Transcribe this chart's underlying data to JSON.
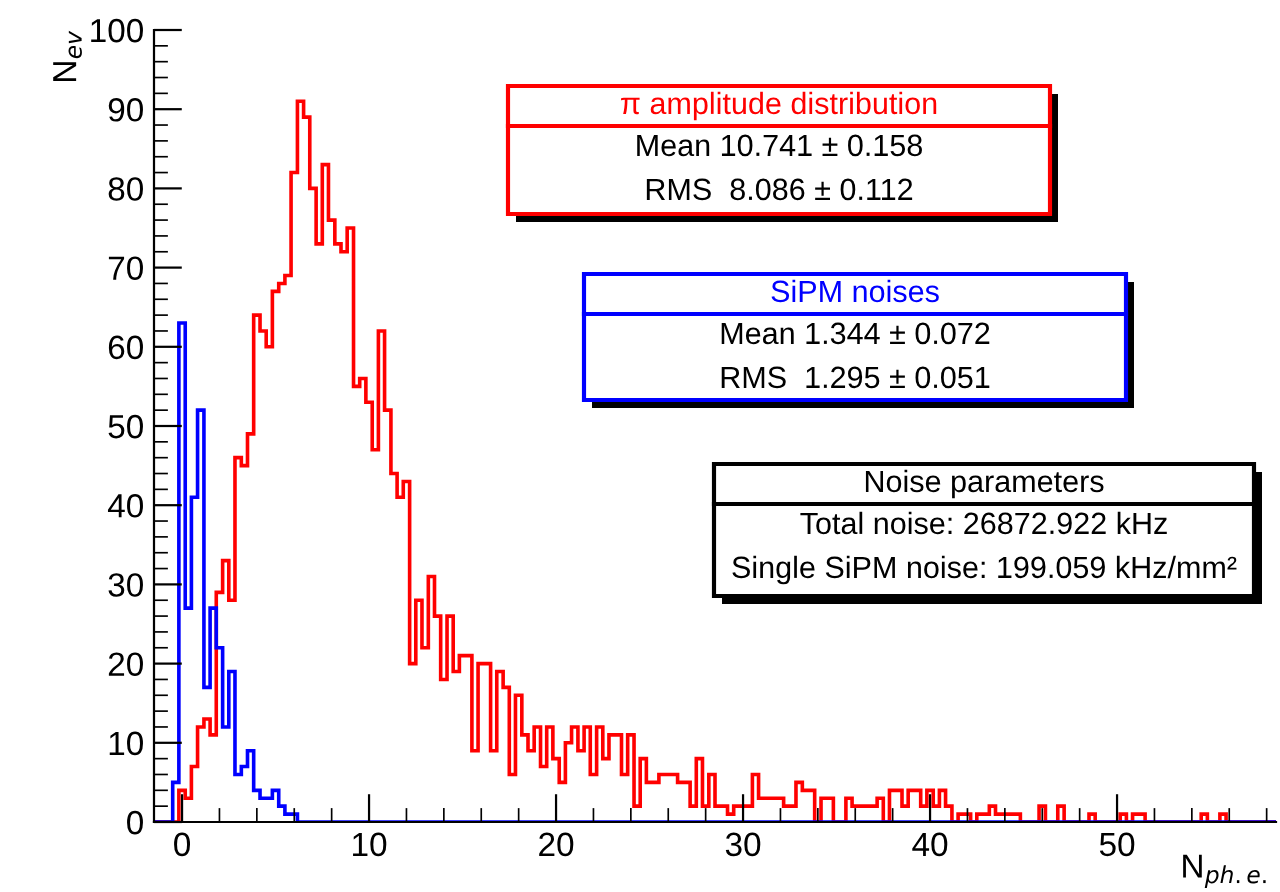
{
  "chart_data": {
    "type": "histogram",
    "xlabel": "N$_{ph.e.}$",
    "ylabel": "N$_{ev}$",
    "bins": [
      -1.5,
      -1.17,
      -0.83,
      -0.5,
      -0.17,
      0.17,
      0.5,
      0.83,
      1.17,
      1.5,
      1.83,
      2.17,
      2.5,
      2.83,
      3.17,
      3.5,
      3.83,
      4.17,
      4.5,
      4.83,
      5.17,
      5.5,
      5.83,
      6.17,
      6.5,
      6.83,
      7.17,
      7.5,
      7.83,
      8.17,
      8.5,
      8.83,
      9.17,
      9.5,
      9.83,
      10.17,
      10.5,
      10.83,
      11.17,
      11.5,
      11.83,
      12.17,
      12.5,
      12.83,
      13.17,
      13.5,
      13.83,
      14.17,
      14.5,
      14.83,
      15.17,
      15.5,
      15.83,
      16.17,
      16.5,
      16.83,
      17.17,
      17.5,
      17.83,
      18.17,
      18.5,
      18.83,
      19.17,
      19.5,
      19.83,
      20.17,
      20.5,
      20.83,
      21.17,
      21.5,
      21.83,
      22.17,
      22.5,
      22.83,
      23.17,
      23.5,
      23.83,
      24.17,
      24.5,
      24.83,
      25.17,
      25.5,
      25.83,
      26.17,
      26.5,
      26.83,
      27.17,
      27.5,
      27.83,
      28.17,
      28.5,
      28.83,
      29.17,
      29.5,
      29.83,
      30.17,
      30.5,
      30.83,
      31.17,
      31.5,
      31.83,
      32.17,
      32.5,
      32.83,
      33.17,
      33.5,
      33.83,
      34.17,
      34.5,
      34.83,
      35.17,
      35.5,
      35.83,
      36.17,
      36.5,
      36.83,
      37.17,
      37.5,
      37.83,
      38.17,
      38.5,
      38.83,
      39.17,
      39.5,
      39.83,
      40.17,
      40.5,
      40.83,
      41.17,
      41.5,
      41.83,
      42.17,
      42.5,
      42.83,
      43.17,
      43.5,
      43.83,
      44.17,
      44.5,
      44.83,
      45.17,
      45.5,
      45.83,
      46.17,
      46.5,
      46.83,
      47.17,
      47.5,
      47.83,
      48.17,
      48.5,
      48.83,
      49.17,
      49.5,
      49.83,
      50.17,
      50.5,
      50.83,
      51.17,
      51.5,
      51.83,
      52.17,
      52.5,
      52.83,
      53.17,
      53.5,
      53.83,
      54.17,
      54.5,
      54.83,
      55.17,
      55.5,
      55.83,
      56.17,
      56.5,
      56.83,
      57.17,
      57.5,
      57.83,
      58.17,
      58.5
    ],
    "series": [
      {
        "name": "π amplitude distribution",
        "color": "#ff0000",
        "values": [
          0,
          0,
          0,
          0,
          4,
          3,
          7,
          12,
          13,
          11,
          29,
          33,
          28,
          46,
          45,
          49,
          64,
          62,
          60,
          67,
          68,
          69,
          82,
          91,
          89,
          80,
          73,
          83,
          76,
          73,
          72,
          75,
          55,
          56,
          53,
          47,
          62,
          52,
          44,
          41,
          43,
          20,
          28,
          22,
          31,
          26,
          18,
          26,
          19,
          21,
          21,
          9,
          20,
          20,
          9,
          19,
          17,
          6,
          16,
          11,
          9,
          12,
          7,
          12,
          8,
          5,
          10,
          12,
          9,
          12,
          6,
          12,
          8,
          11,
          11,
          6,
          11,
          2,
          8,
          5,
          5,
          6,
          6,
          6,
          5,
          5,
          2,
          8,
          2,
          6,
          2,
          2,
          1,
          2,
          2,
          2,
          6,
          3,
          3,
          3,
          3,
          2,
          2,
          5,
          4,
          4,
          0,
          3,
          3,
          0,
          0,
          3,
          2,
          2,
          2,
          2,
          3,
          0,
          4,
          4,
          2,
          4,
          4,
          2,
          4,
          2,
          4,
          2,
          0,
          1,
          1,
          0,
          1,
          1,
          2,
          1,
          1,
          1,
          1,
          0,
          0,
          0,
          2,
          0,
          0,
          2,
          0,
          0,
          0,
          0,
          1,
          0,
          0,
          0,
          0,
          1,
          0,
          1,
          1,
          0,
          0,
          0,
          0,
          0,
          0,
          0,
          0,
          0,
          1,
          0,
          0,
          1,
          0,
          0,
          0,
          0,
          0,
          0,
          0,
          0
        ]
      },
      {
        "name": "SiPM noises",
        "color": "#0000ff",
        "values": [
          0,
          0,
          0,
          5,
          63,
          27,
          41,
          52,
          17,
          27,
          22,
          12,
          19,
          6,
          7,
          9,
          4,
          3,
          3,
          4,
          2,
          1,
          1,
          0,
          0,
          0,
          0,
          0,
          0,
          0,
          0,
          0,
          0,
          0,
          0,
          0,
          0,
          0,
          0,
          0,
          0,
          0,
          0,
          0,
          0,
          0,
          0,
          0,
          0,
          0,
          0,
          0,
          0,
          0,
          0,
          0,
          0,
          0,
          0,
          0,
          0,
          0,
          0,
          0,
          0,
          0,
          0,
          0,
          0,
          0,
          0,
          0,
          0,
          0,
          0,
          0,
          0,
          0,
          0,
          0,
          0,
          0,
          0,
          0,
          0,
          0,
          0,
          0,
          0,
          0,
          0,
          0,
          0,
          0,
          0,
          0,
          0,
          0,
          0,
          0,
          0,
          0,
          0,
          0,
          0,
          0,
          0,
          0,
          0,
          0,
          0,
          0,
          0,
          0,
          0,
          0,
          0,
          0,
          0,
          0,
          0,
          0,
          0,
          0,
          0,
          0,
          0,
          0,
          0,
          0,
          0,
          0,
          0,
          0,
          0,
          0,
          0,
          0,
          0,
          0,
          0,
          0,
          0,
          0,
          0,
          0,
          0,
          0,
          0,
          0,
          0,
          0,
          0,
          0,
          0,
          0,
          0,
          0,
          0,
          0,
          0,
          0,
          0,
          0,
          0,
          0,
          0,
          0,
          0,
          0,
          0,
          0,
          0,
          0,
          0,
          0,
          0,
          0,
          0,
          0
        ]
      }
    ],
    "annotations": [
      "Mean 10.741 ± 0.158",
      "RMS  8.086 ± 0.112",
      "Mean 1.344 ± 0.072",
      "RMS  1.295 ± 0.051",
      "Noise parameters",
      "Total noise: 26872.922 kHz",
      "Single SiPM noise: 199.059 kHz/mm²"
    ],
    "xlim": [
      -1.5,
      58.5
    ],
    "ylim": [
      0,
      100
    ],
    "xticks": [
      0,
      10,
      20,
      30,
      40,
      50
    ],
    "yticks": [
      0,
      10,
      20,
      30,
      40,
      50,
      60,
      70,
      80,
      90,
      100
    ],
    "grid": false
  }
}
